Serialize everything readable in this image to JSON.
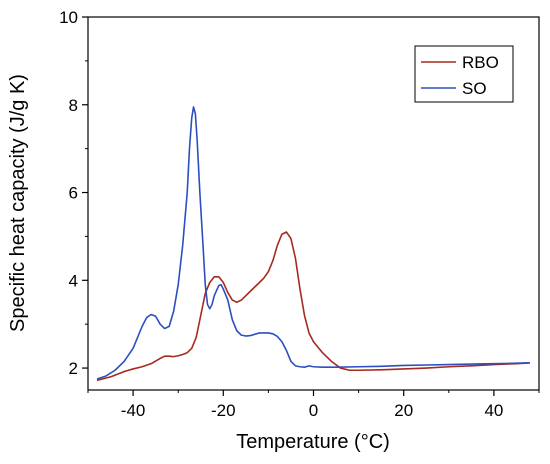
{
  "chart_data": {
    "type": "line",
    "title": "",
    "xlabel": "Temperature (°C)",
    "ylabel": "Specific heat capacity (J/g K)",
    "xlim": [
      -50,
      50
    ],
    "ylim": [
      1.5,
      10
    ],
    "x_ticks": [
      -40,
      -20,
      0,
      20,
      40
    ],
    "x_tick_labels": [
      "-40",
      "-20",
      "0",
      "20",
      "40"
    ],
    "y_ticks": [
      2,
      4,
      6,
      8,
      10
    ],
    "y_tick_labels": [
      "2",
      "4",
      "6",
      "8",
      "10"
    ],
    "grid": false,
    "legend": {
      "position": "top-right"
    },
    "series": [
      {
        "name": "RBO",
        "color": "#a52a1f",
        "points": [
          [
            -48,
            1.72
          ],
          [
            -45,
            1.8
          ],
          [
            -42,
            1.92
          ],
          [
            -40,
            1.98
          ],
          [
            -38,
            2.03
          ],
          [
            -36,
            2.1
          ],
          [
            -34,
            2.22
          ],
          [
            -33,
            2.27
          ],
          [
            -32,
            2.27
          ],
          [
            -31,
            2.26
          ],
          [
            -30,
            2.28
          ],
          [
            -29,
            2.31
          ],
          [
            -28,
            2.35
          ],
          [
            -27,
            2.45
          ],
          [
            -26,
            2.7
          ],
          [
            -25,
            3.2
          ],
          [
            -24,
            3.7
          ],
          [
            -23,
            3.95
          ],
          [
            -22,
            4.08
          ],
          [
            -21,
            4.08
          ],
          [
            -20,
            3.95
          ],
          [
            -19,
            3.72
          ],
          [
            -18,
            3.55
          ],
          [
            -17,
            3.5
          ],
          [
            -16,
            3.55
          ],
          [
            -15,
            3.65
          ],
          [
            -14,
            3.75
          ],
          [
            -13,
            3.85
          ],
          [
            -12,
            3.95
          ],
          [
            -11,
            4.05
          ],
          [
            -10,
            4.2
          ],
          [
            -9,
            4.45
          ],
          [
            -8,
            4.8
          ],
          [
            -7,
            5.05
          ],
          [
            -6,
            5.1
          ],
          [
            -5,
            4.95
          ],
          [
            -4,
            4.5
          ],
          [
            -3,
            3.8
          ],
          [
            -2,
            3.2
          ],
          [
            -1,
            2.8
          ],
          [
            0,
            2.6
          ],
          [
            2,
            2.35
          ],
          [
            4,
            2.15
          ],
          [
            6,
            2.0
          ],
          [
            8,
            1.95
          ],
          [
            10,
            1.95
          ],
          [
            15,
            1.96
          ],
          [
            20,
            1.98
          ],
          [
            25,
            2.0
          ],
          [
            30,
            2.03
          ],
          [
            35,
            2.05
          ],
          [
            40,
            2.08
          ],
          [
            45,
            2.1
          ],
          [
            48,
            2.12
          ]
        ]
      },
      {
        "name": "SO",
        "color": "#2b4fbf",
        "points": [
          [
            -48,
            1.75
          ],
          [
            -46,
            1.82
          ],
          [
            -44,
            1.95
          ],
          [
            -42,
            2.15
          ],
          [
            -40,
            2.45
          ],
          [
            -38,
            2.95
          ],
          [
            -37,
            3.15
          ],
          [
            -36,
            3.22
          ],
          [
            -35,
            3.18
          ],
          [
            -34,
            3.0
          ],
          [
            -33,
            2.9
          ],
          [
            -32,
            2.95
          ],
          [
            -31,
            3.3
          ],
          [
            -30,
            3.9
          ],
          [
            -29,
            4.8
          ],
          [
            -28,
            6.0
          ],
          [
            -27.5,
            7.0
          ],
          [
            -27,
            7.7
          ],
          [
            -26.6,
            7.95
          ],
          [
            -26.2,
            7.8
          ],
          [
            -25.8,
            7.2
          ],
          [
            -25.2,
            6.0
          ],
          [
            -24.5,
            4.8
          ],
          [
            -24,
            3.9
          ],
          [
            -23.5,
            3.45
          ],
          [
            -23,
            3.35
          ],
          [
            -22.5,
            3.45
          ],
          [
            -22,
            3.65
          ],
          [
            -21,
            3.88
          ],
          [
            -20.5,
            3.9
          ],
          [
            -20,
            3.8
          ],
          [
            -19,
            3.55
          ],
          [
            -18,
            3.1
          ],
          [
            -17,
            2.85
          ],
          [
            -16,
            2.75
          ],
          [
            -15,
            2.73
          ],
          [
            -14,
            2.74
          ],
          [
            -13,
            2.77
          ],
          [
            -12,
            2.8
          ],
          [
            -10,
            2.8
          ],
          [
            -9,
            2.78
          ],
          [
            -8,
            2.72
          ],
          [
            -7,
            2.6
          ],
          [
            -6,
            2.4
          ],
          [
            -5,
            2.15
          ],
          [
            -4,
            2.05
          ],
          [
            -3,
            2.03
          ],
          [
            -2,
            2.02
          ],
          [
            -1,
            2.05
          ],
          [
            0,
            2.03
          ],
          [
            2,
            2.02
          ],
          [
            5,
            2.02
          ],
          [
            10,
            2.03
          ],
          [
            15,
            2.04
          ],
          [
            20,
            2.06
          ],
          [
            25,
            2.07
          ],
          [
            30,
            2.08
          ],
          [
            35,
            2.09
          ],
          [
            40,
            2.1
          ],
          [
            45,
            2.11
          ],
          [
            48,
            2.12
          ]
        ]
      }
    ]
  }
}
